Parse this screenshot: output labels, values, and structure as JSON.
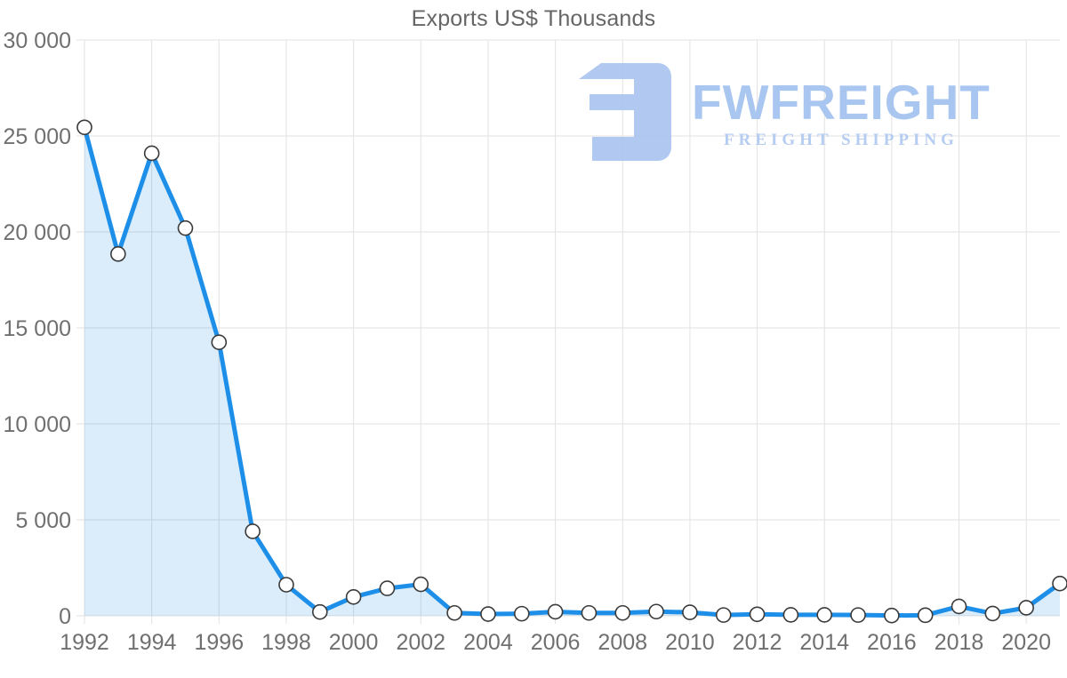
{
  "page": {
    "background": "#ffffff"
  },
  "chart_data": {
    "type": "area",
    "title": "Exports US$ Thousands",
    "x": [
      1992,
      1993,
      1994,
      1995,
      1996,
      1997,
      1998,
      1999,
      2000,
      2001,
      2002,
      2003,
      2004,
      2005,
      2006,
      2007,
      2008,
      2009,
      2010,
      2011,
      2012,
      2013,
      2014,
      2015,
      2016,
      2017,
      2018,
      2019,
      2020,
      2021
    ],
    "series": [
      {
        "name": "Exports US$ Thousands",
        "values": [
          25450,
          18850,
          24100,
          20200,
          14250,
          4400,
          1620,
          200,
          980,
          1430,
          1640,
          150,
          90,
          110,
          210,
          150,
          150,
          220,
          180,
          40,
          80,
          50,
          50,
          40,
          15,
          30,
          490,
          120,
          420,
          1680
        ]
      }
    ],
    "xlabel": "",
    "ylabel": "",
    "ylim": [
      0,
      30000
    ],
    "grid": true,
    "legend": "none",
    "ytick_values": [
      0,
      5000,
      10000,
      15000,
      20000,
      25000,
      30000
    ],
    "ytick_labels": [
      "0",
      "5 000",
      "10 000",
      "15 000",
      "20 000",
      "25 000",
      "30 000"
    ],
    "xtick_values": [
      1992,
      1994,
      1996,
      1998,
      2000,
      2002,
      2004,
      2006,
      2008,
      2010,
      2012,
      2014,
      2016,
      2018,
      2020
    ],
    "xtick_labels": [
      "1992",
      "1994",
      "1996",
      "1998",
      "2000",
      "2002",
      "2004",
      "2006",
      "2008",
      "2010",
      "2012",
      "2014",
      "2016",
      "2018",
      "2020"
    ],
    "colors": {
      "line": "#1e8fe8",
      "fill": "rgba(30,143,232,0.16)",
      "marker_fill": "#ffffff",
      "marker_stroke": "#3a3a3a",
      "grid_line": "#e2e2e2",
      "tick_text": "#707070",
      "title_text": "#666666"
    }
  },
  "watermark": {
    "brand": "FWFREIGHT",
    "tagline": "FREIGHT SHIPPING",
    "colors": {
      "icon": "#abc5ef",
      "brand": "#a2c2ef",
      "tagline": "#b0c9f1"
    }
  }
}
